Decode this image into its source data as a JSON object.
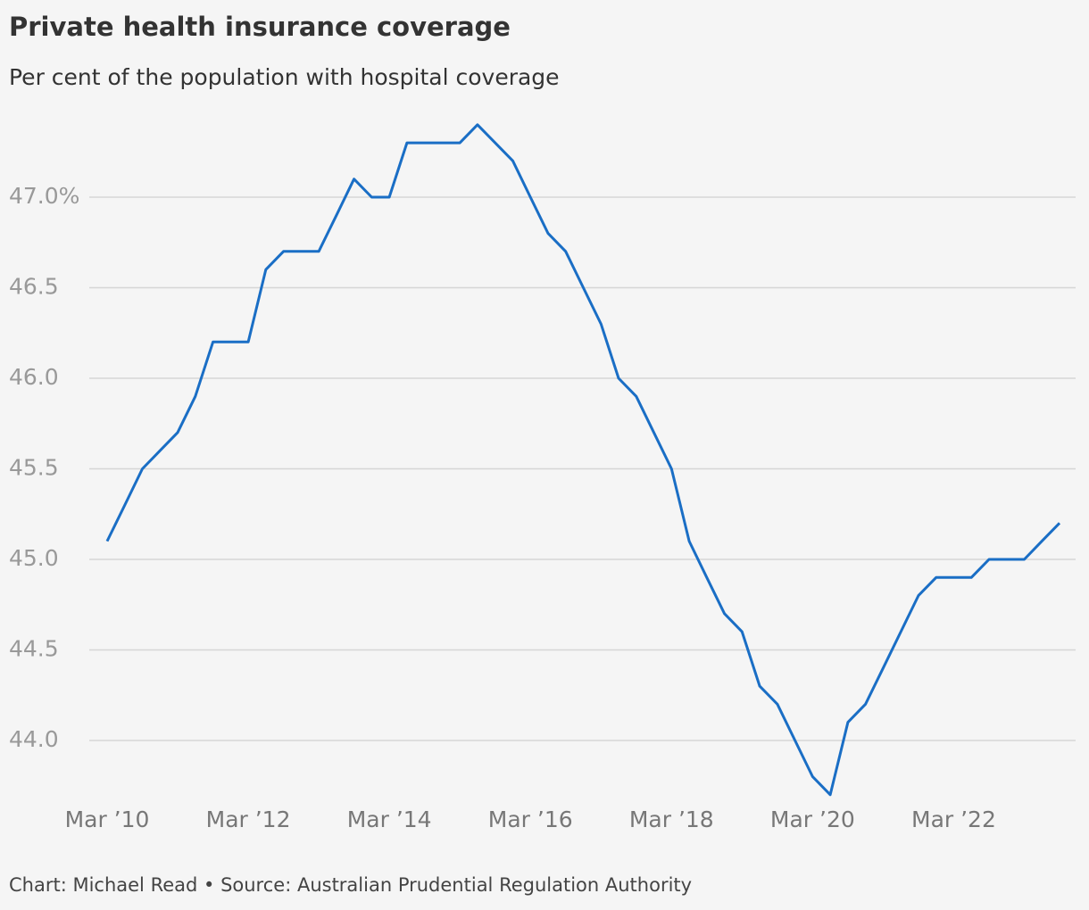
{
  "chart_data": {
    "type": "line",
    "title": "Private health insurance coverage",
    "subtitle": "Per cent of the population with hospital coverage",
    "source": "Chart: Michael Read • Source: Australian Prudential Regulation Authority",
    "categories": [
      "Mar ’10",
      null,
      null,
      null,
      null,
      null,
      null,
      null,
      "Mar ’12",
      null,
      null,
      null,
      null,
      null,
      null,
      null,
      "Mar ’14",
      null,
      null,
      null,
      null,
      null,
      null,
      null,
      "Mar ’16",
      null,
      null,
      null,
      null,
      null,
      null,
      null,
      "Mar ’18",
      null,
      null,
      null,
      null,
      null,
      null,
      null,
      "Mar ’20",
      null,
      null,
      null,
      null,
      null,
      null,
      null,
      "Mar ’22",
      null,
      null,
      null,
      null,
      null,
      null
    ],
    "series": [
      {
        "name": "Hospital coverage",
        "color": "#1a6ec5",
        "values": [
          45.1,
          45.3,
          45.5,
          45.6,
          45.7,
          45.9,
          46.2,
          46.2,
          46.2,
          46.6,
          46.7,
          46.7,
          46.7,
          46.9,
          47.1,
          47.0,
          47.0,
          47.3,
          47.3,
          47.3,
          47.3,
          47.4,
          47.3,
          47.2,
          47.0,
          46.8,
          46.7,
          46.5,
          46.3,
          46.0,
          45.9,
          45.7,
          45.5,
          45.1,
          44.9,
          44.7,
          44.6,
          44.3,
          44.2,
          44.0,
          43.8,
          43.7,
          44.1,
          44.2,
          44.4,
          44.6,
          44.8,
          44.9,
          44.9,
          44.9,
          45.0,
          45.0,
          45.0,
          45.1,
          45.2
        ]
      }
    ],
    "ylim": [
      43.65,
      47.45
    ],
    "yticks": [
      {
        "value": 44,
        "label": "44.0"
      },
      {
        "value": 44.5,
        "label": "44.5"
      },
      {
        "value": 45,
        "label": "45.0"
      },
      {
        "value": 45.5,
        "label": "45.5"
      },
      {
        "value": 46,
        "label": "46.0"
      },
      {
        "value": 46.5,
        "label": "46.5"
      },
      {
        "value": 47,
        "label": "47.0%"
      }
    ],
    "grid": true
  }
}
